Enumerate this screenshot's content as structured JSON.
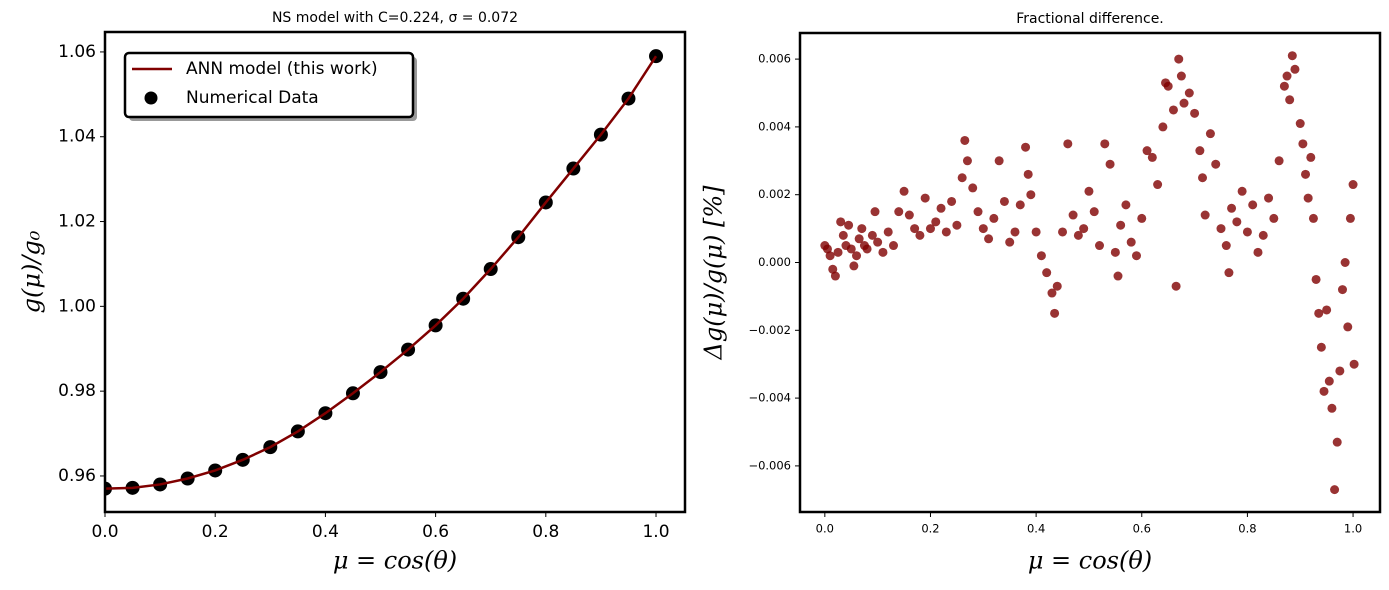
{
  "chart_data": [
    {
      "type": "line",
      "title": "NS model with C=0.224, σ = 0.072",
      "xlabel": "μ = cos(θ)",
      "ylabel": "g(μ)/g₀",
      "x": [
        0,
        0.05,
        0.1,
        0.15,
        0.2,
        0.25,
        0.3,
        0.35,
        0.4,
        0.45,
        0.5,
        0.55,
        0.6,
        0.65,
        0.7,
        0.75,
        0.8,
        0.85,
        0.9,
        0.95,
        1.0
      ],
      "series": [
        {
          "name": "ANN model (this work)",
          "type": "line",
          "color": "#800000",
          "values": [
            0.957,
            0.9572,
            0.958,
            0.9594,
            0.9613,
            0.9638,
            0.9668,
            0.9705,
            0.9748,
            0.9795,
            0.9845,
            0.9898,
            0.9955,
            1.0018,
            1.0088,
            1.0163,
            1.0245,
            1.0325,
            1.0405,
            1.049,
            1.059
          ]
        },
        {
          "name": "Numerical Data",
          "type": "scatter",
          "color": "#000000",
          "values": [
            0.957,
            0.9572,
            0.958,
            0.9594,
            0.9613,
            0.9638,
            0.9668,
            0.9705,
            0.9748,
            0.9795,
            0.9845,
            0.9898,
            0.9955,
            1.0018,
            1.0088,
            1.0163,
            1.0245,
            1.0325,
            1.0405,
            1.049,
            1.059
          ]
        }
      ],
      "xlim": [
        0,
        1.0526
      ],
      "ylim": [
        0.9515,
        1.0647
      ],
      "xticks": [
        {
          "value": 0,
          "label": "0.0"
        },
        {
          "value": 0.2,
          "label": "0.2"
        },
        {
          "value": 0.4,
          "label": "0.4"
        },
        {
          "value": 0.6,
          "label": "0.6"
        },
        {
          "value": 0.8,
          "label": "0.8"
        },
        {
          "value": 1,
          "label": "1.0"
        }
      ],
      "yticks": [
        {
          "value": 0.96,
          "label": "0.96"
        },
        {
          "value": 0.98,
          "label": "0.98"
        },
        {
          "value": 1,
          "label": "1.00"
        },
        {
          "value": 1.02,
          "label": "1.02"
        },
        {
          "value": 1.04,
          "label": "1.04"
        },
        1.06
      ],
      "legend": "upper left",
      "grid": false
    },
    {
      "type": "scatter",
      "title": "Fractional difference.",
      "xlabel": "μ = cos(θ)",
      "ylabel": "Δg(μ)/g(μ)  [%]",
      "color": "#800000",
      "x": [
        0,
        0.005,
        0.01,
        0.015,
        0.02,
        0.025,
        0.03,
        0.035,
        0.04,
        0.045,
        0.05,
        0.055,
        0.06,
        0.065,
        0.07,
        0.075,
        0.08,
        0.09,
        0.095,
        0.1,
        0.11,
        0.12,
        0.13,
        0.14,
        0.15,
        0.16,
        0.17,
        0.18,
        0.19,
        0.2,
        0.21,
        0.22,
        0.23,
        0.24,
        0.25,
        0.26,
        0.265,
        0.27,
        0.28,
        0.29,
        0.3,
        0.31,
        0.32,
        0.33,
        0.34,
        0.35,
        0.36,
        0.37,
        0.38,
        0.385,
        0.39,
        0.4,
        0.41,
        0.42,
        0.43,
        0.435,
        0.44,
        0.45,
        0.46,
        0.47,
        0.48,
        0.49,
        0.5,
        0.51,
        0.52,
        0.53,
        0.54,
        0.55,
        0.555,
        0.56,
        0.57,
        0.58,
        0.59,
        0.6,
        0.61,
        0.62,
        0.63,
        0.64,
        0.645,
        0.65,
        0.66,
        0.665,
        0.67,
        0.675,
        0.68,
        0.69,
        0.7,
        0.71,
        0.715,
        0.72,
        0.73,
        0.74,
        0.75,
        0.76,
        0.765,
        0.77,
        0.78,
        0.79,
        0.8,
        0.81,
        0.82,
        0.83,
        0.84,
        0.85,
        0.86,
        0.87,
        0.875,
        0.88,
        0.885,
        0.89,
        0.9,
        0.905,
        0.91,
        0.915,
        0.92,
        0.925,
        0.93,
        0.935,
        0.94,
        0.945,
        0.95,
        0.955,
        0.96,
        0.965,
        0.97,
        0.975,
        0.98,
        0.985,
        0.99,
        0.995,
        1.0,
        1.002
      ],
      "values": [
        0.0005,
        0.0004,
        0.0002,
        -0.0002,
        -0.0004,
        0.0003,
        0.0012,
        0.0008,
        0.0005,
        0.0011,
        0.0004,
        -0.0001,
        0.0002,
        0.0007,
        0.001,
        0.0005,
        0.0004,
        0.0008,
        0.0015,
        0.0006,
        0.0003,
        0.0009,
        0.0005,
        0.0015,
        0.0021,
        0.0014,
        0.001,
        0.0008,
        0.0019,
        0.001,
        0.0012,
        0.0016,
        0.0009,
        0.0018,
        0.0011,
        0.0025,
        0.0036,
        0.003,
        0.0022,
        0.0015,
        0.001,
        0.0007,
        0.0013,
        0.003,
        0.0018,
        0.0006,
        0.0009,
        0.0017,
        0.0034,
        0.0026,
        0.002,
        0.0009,
        0.0002,
        -0.0003,
        -0.0009,
        -0.0015,
        -0.0007,
        0.0009,
        0.0035,
        0.0014,
        0.0008,
        0.001,
        0.0021,
        0.0015,
        0.0005,
        0.0035,
        0.0029,
        0.0003,
        -0.0004,
        0.0011,
        0.0017,
        0.0006,
        0.0002,
        0.0013,
        0.0033,
        0.0031,
        0.0023,
        0.004,
        0.0053,
        0.0052,
        0.0045,
        -0.0007,
        0.006,
        0.0055,
        0.0047,
        0.005,
        0.0044,
        0.0033,
        0.0025,
        0.0014,
        0.0038,
        0.0029,
        0.001,
        0.0005,
        -0.0003,
        0.0016,
        0.0012,
        0.0021,
        0.0009,
        0.0017,
        0.0003,
        0.0008,
        0.0019,
        0.0013,
        0.003,
        0.0052,
        0.0055,
        0.0048,
        0.0061,
        0.0057,
        0.0041,
        0.0035,
        0.0026,
        0.0019,
        0.0031,
        0.0013,
        -0.0005,
        -0.0015,
        -0.0025,
        -0.0038,
        -0.0014,
        -0.0035,
        -0.0043,
        -0.0067,
        -0.0053,
        -0.0032,
        -0.0008,
        0,
        -0.0019,
        0.0013,
        0.0023,
        -0.003
      ],
      "xlim": [
        -0.047,
        1.051
      ],
      "ylim": [
        -0.00736,
        0.00677
      ],
      "xticks": [
        {
          "value": 0,
          "label": "0.0"
        },
        {
          "value": 0.2,
          "label": "0.2"
        },
        {
          "value": 0.4,
          "label": "0.4"
        },
        {
          "value": 0.6,
          "label": "0.6"
        },
        {
          "value": 0.8,
          "label": "0.8"
        },
        {
          "value": 1,
          "label": "1.0"
        }
      ],
      "yticks": [
        {
          "value": -0.006,
          "label": "−0.006"
        },
        {
          "value": -0.004,
          "label": "−0.004"
        },
        {
          "value": -0.002,
          "label": "−0.002"
        },
        {
          "value": 0,
          "label": "0.000"
        },
        {
          "value": 0.002,
          "label": "0.002"
        },
        {
          "value": 0.004,
          "label": "0.004"
        },
        {
          "value": 0.006,
          "label": "0.006"
        }
      ],
      "grid": false
    }
  ]
}
